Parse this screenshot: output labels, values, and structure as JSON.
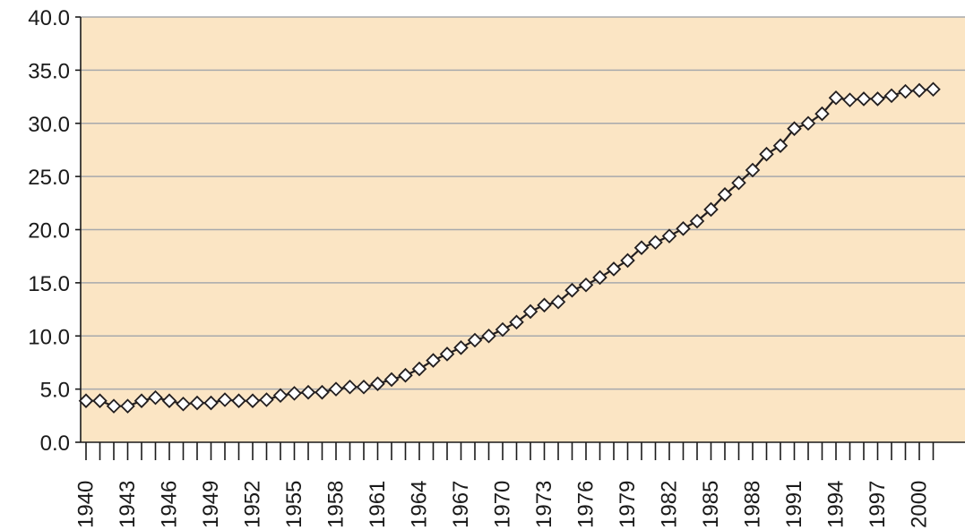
{
  "chart_data": {
    "type": "line",
    "title": "",
    "xlabel": "",
    "ylabel": "",
    "ylim": [
      0,
      40
    ],
    "yticks": [
      "0.0",
      "5.0",
      "10.0",
      "15.0",
      "20.0",
      "25.0",
      "30.0",
      "35.0",
      "40.0"
    ],
    "xlim": [
      1940,
      2001
    ],
    "xticks": [
      "1940",
      "1943",
      "1946",
      "1949",
      "1952",
      "1955",
      "1958",
      "1961",
      "1964",
      "1967",
      "1970",
      "1973",
      "1976",
      "1979",
      "1982",
      "1985",
      "1988",
      "1991",
      "1994",
      "1997",
      "2000"
    ],
    "grid": true,
    "legend": "none",
    "colors": {
      "plot_background": "#fbe5c4",
      "line": "#231f20",
      "marker_fill": "#ffffff",
      "grid": "#a7a9ac"
    },
    "series": [
      {
        "x": [
          1940,
          1941,
          1942,
          1943,
          1944,
          1945,
          1946,
          1947,
          1948,
          1949,
          1950,
          1951,
          1952,
          1953,
          1954,
          1955,
          1956,
          1957,
          1958,
          1959,
          1960,
          1961,
          1962,
          1963,
          1964,
          1965,
          1966,
          1967,
          1968,
          1969,
          1970,
          1971,
          1972,
          1973,
          1974,
          1975,
          1976,
          1977,
          1978,
          1979,
          1980,
          1981,
          1982,
          1983,
          1984,
          1985,
          1986,
          1987,
          1988,
          1989,
          1990,
          1991,
          1992,
          1993,
          1994,
          1995,
          1996,
          1997,
          1998,
          1999,
          2000,
          2001
        ],
        "values": [
          3.9,
          3.9,
          3.4,
          3.4,
          3.9,
          4.2,
          3.9,
          3.6,
          3.7,
          3.7,
          4.0,
          3.9,
          3.9,
          4.0,
          4.4,
          4.6,
          4.7,
          4.7,
          5.0,
          5.2,
          5.2,
          5.5,
          5.9,
          6.3,
          6.9,
          7.7,
          8.3,
          8.9,
          9.6,
          10.0,
          10.6,
          11.3,
          12.3,
          12.9,
          13.2,
          14.3,
          14.8,
          15.5,
          16.3,
          17.1,
          18.3,
          18.8,
          19.4,
          20.1,
          20.8,
          21.9,
          23.3,
          24.4,
          25.6,
          27.1,
          27.9,
          29.5,
          30.0,
          30.9,
          32.4,
          32.2,
          32.3,
          32.3,
          32.6,
          33.0,
          33.1,
          33.2
        ]
      }
    ]
  }
}
